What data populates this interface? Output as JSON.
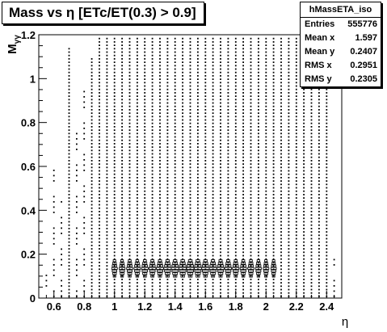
{
  "chart_data": {
    "type": "scatter",
    "title": "Mass vs η [ETc/ET(0.3) > 0.9]",
    "xlabel": "η",
    "ylabel": "Mγγ",
    "xlim": [
      0.5,
      2.5
    ],
    "ylim": [
      0,
      1.2
    ],
    "xticks": [
      {
        "value": 0.6,
        "label": "0.6"
      },
      {
        "value": 0.8,
        "label": "0.8"
      },
      {
        "value": 1.0,
        "label": "1"
      },
      {
        "value": 1.2,
        "label": "1.2"
      },
      {
        "value": 1.4,
        "label": "1.4"
      },
      {
        "value": 1.6,
        "label": "1.6"
      },
      {
        "value": 1.8,
        "label": "1.8"
      },
      {
        "value": 2.0,
        "label": "2"
      },
      {
        "value": 2.2,
        "label": "2.2"
      },
      {
        "value": 2.4,
        "label": "2.4"
      }
    ],
    "yticks": [
      {
        "value": 0,
        "label": "0"
      },
      {
        "value": 0.2,
        "label": "0.2"
      },
      {
        "value": 0.4,
        "label": "0.4"
      },
      {
        "value": 0.6,
        "label": "0.6"
      },
      {
        "value": 0.8,
        "label": "0.8"
      },
      {
        "value": 1.0,
        "label": "1"
      },
      {
        "value": 1.2,
        "label": "1.2"
      }
    ],
    "columns_eta": [
      0.55,
      0.6,
      0.65,
      0.7,
      0.75,
      0.8,
      0.85,
      0.9,
      0.95,
      1.0,
      1.05,
      1.1,
      1.15,
      1.2,
      1.25,
      1.3,
      1.35,
      1.4,
      1.45,
      1.5,
      1.55,
      1.6,
      1.65,
      1.7,
      1.75,
      1.8,
      1.85,
      1.9,
      1.95,
      2.0,
      2.05,
      2.1,
      2.15,
      2.2,
      2.25,
      2.3,
      2.35,
      2.4,
      2.45
    ],
    "column_max_mass": [
      0.13,
      0.6,
      0.45,
      1.15,
      0.78,
      0.95,
      1.1,
      1.2,
      1.2,
      1.2,
      1.2,
      1.2,
      1.2,
      1.2,
      1.2,
      1.2,
      1.2,
      1.2,
      1.2,
      1.2,
      1.2,
      1.2,
      1.2,
      1.2,
      1.2,
      1.2,
      1.2,
      1.2,
      1.2,
      1.2,
      1.2,
      1.2,
      1.2,
      1.2,
      1.2,
      1.2,
      1.2,
      1.2,
      0.18
    ],
    "peak_mass": 0.135,
    "stats": {
      "name": "hMassETA_iso",
      "rows": [
        {
          "label": "Entries",
          "value": "555776"
        },
        {
          "label": "Mean x",
          "value": "1.597"
        },
        {
          "label": "Mean y",
          "value": "0.2407"
        },
        {
          "label": "RMS x",
          "value": "0.2951"
        },
        {
          "label": "RMS y",
          "value": "0.2305"
        }
      ]
    }
  }
}
